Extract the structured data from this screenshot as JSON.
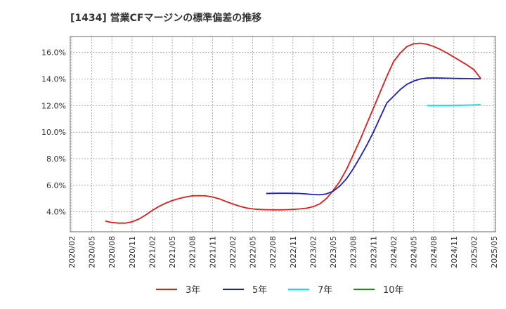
{
  "chart_data": {
    "type": "line",
    "title": "[1434]  営業CFマージンの標準偏差の推移",
    "xlabel": "",
    "ylabel": "",
    "x_ticks": [
      "2020/02",
      "2020/05",
      "2020/08",
      "2020/11",
      "2021/02",
      "2021/05",
      "2021/08",
      "2021/11",
      "2022/02",
      "2022/05",
      "2022/08",
      "2022/11",
      "2023/02",
      "2023/05",
      "2023/08",
      "2023/11",
      "2024/02",
      "2024/05",
      "2024/08",
      "2024/11",
      "2025/02",
      "2025/05"
    ],
    "y_ticks": [
      "4.0%",
      "6.0%",
      "8.0%",
      "10.0%",
      "12.0%",
      "14.0%",
      "16.0%"
    ],
    "ylim": [
      2.5,
      17.2
    ],
    "grid": true,
    "legend_position": "bottom",
    "series": [
      {
        "name": "3年",
        "color": "#dd1c1c",
        "points": [
          [
            "2020/07",
            3.3
          ],
          [
            "2020/08",
            3.2
          ],
          [
            "2020/09",
            3.15
          ],
          [
            "2020/10",
            3.15
          ],
          [
            "2020/11",
            3.25
          ],
          [
            "2020/12",
            3.45
          ],
          [
            "2021/01",
            3.75
          ],
          [
            "2021/02",
            4.1
          ],
          [
            "2021/03",
            4.4
          ],
          [
            "2021/04",
            4.65
          ],
          [
            "2021/05",
            4.85
          ],
          [
            "2021/06",
            5.0
          ],
          [
            "2021/07",
            5.12
          ],
          [
            "2021/08",
            5.2
          ],
          [
            "2021/09",
            5.22
          ],
          [
            "2021/10",
            5.2
          ],
          [
            "2021/11",
            5.12
          ],
          [
            "2021/12",
            4.98
          ],
          [
            "2022/01",
            4.78
          ],
          [
            "2022/02",
            4.6
          ],
          [
            "2022/03",
            4.43
          ],
          [
            "2022/04",
            4.3
          ],
          [
            "2022/05",
            4.22
          ],
          [
            "2022/06",
            4.18
          ],
          [
            "2022/07",
            4.16
          ],
          [
            "2022/08",
            4.15
          ],
          [
            "2022/09",
            4.15
          ],
          [
            "2022/10",
            4.16
          ],
          [
            "2022/11",
            4.18
          ],
          [
            "2022/12",
            4.22
          ],
          [
            "2023/01",
            4.27
          ],
          [
            "2023/02",
            4.38
          ],
          [
            "2023/03",
            4.6
          ],
          [
            "2023/04",
            5.0
          ],
          [
            "2023/05",
            5.6
          ],
          [
            "2023/06",
            6.3
          ],
          [
            "2023/07",
            7.2
          ],
          [
            "2023/08",
            8.3
          ],
          [
            "2023/09",
            9.4
          ],
          [
            "2023/10",
            10.6
          ],
          [
            "2023/11",
            11.8
          ],
          [
            "2023/12",
            13.0
          ],
          [
            "2024/01",
            14.2
          ],
          [
            "2024/02",
            15.3
          ],
          [
            "2024/03",
            15.95
          ],
          [
            "2024/04",
            16.45
          ],
          [
            "2024/05",
            16.65
          ],
          [
            "2024/06",
            16.7
          ],
          [
            "2024/07",
            16.62
          ],
          [
            "2024/08",
            16.45
          ],
          [
            "2024/09",
            16.22
          ],
          [
            "2024/10",
            15.95
          ],
          [
            "2024/11",
            15.65
          ],
          [
            "2024/12",
            15.35
          ],
          [
            "2025/01",
            15.05
          ],
          [
            "2025/02",
            14.7
          ],
          [
            "2025/03",
            14.05
          ]
        ]
      },
      {
        "name": "5年",
        "color": "#1c1cc8",
        "points": [
          [
            "2022/07",
            5.38
          ],
          [
            "2022/08",
            5.39
          ],
          [
            "2022/09",
            5.4
          ],
          [
            "2022/10",
            5.4
          ],
          [
            "2022/11",
            5.39
          ],
          [
            "2022/12",
            5.38
          ],
          [
            "2023/01",
            5.35
          ],
          [
            "2023/02",
            5.3
          ],
          [
            "2023/03",
            5.28
          ],
          [
            "2023/04",
            5.35
          ],
          [
            "2023/05",
            5.55
          ],
          [
            "2023/06",
            5.95
          ],
          [
            "2023/07",
            6.5
          ],
          [
            "2023/08",
            7.25
          ],
          [
            "2023/09",
            8.1
          ],
          [
            "2023/10",
            9.0
          ],
          [
            "2023/11",
            10.0
          ],
          [
            "2023/12",
            11.1
          ],
          [
            "2024/01",
            12.2
          ],
          [
            "2024/02",
            12.7
          ],
          [
            "2024/03",
            13.2
          ],
          [
            "2024/04",
            13.6
          ],
          [
            "2024/05",
            13.85
          ],
          [
            "2024/06",
            14.0
          ],
          [
            "2024/07",
            14.07
          ],
          [
            "2024/08",
            14.08
          ],
          [
            "2024/09",
            14.07
          ],
          [
            "2024/10",
            14.06
          ],
          [
            "2024/11",
            14.05
          ],
          [
            "2024/12",
            14.04
          ],
          [
            "2025/01",
            14.03
          ],
          [
            "2025/02",
            14.02
          ],
          [
            "2025/03",
            14.02
          ]
        ]
      },
      {
        "name": "7年",
        "color": "#00e0f0",
        "points": [
          [
            "2024/07",
            12.0
          ],
          [
            "2024/08",
            12.0
          ],
          [
            "2024/09",
            12.0
          ],
          [
            "2024/10",
            12.01
          ],
          [
            "2024/11",
            12.02
          ],
          [
            "2024/12",
            12.03
          ],
          [
            "2025/01",
            12.04
          ],
          [
            "2025/02",
            12.05
          ],
          [
            "2025/03",
            12.07
          ]
        ]
      },
      {
        "name": "10年",
        "color": "#1c8c1c",
        "points": []
      }
    ]
  }
}
